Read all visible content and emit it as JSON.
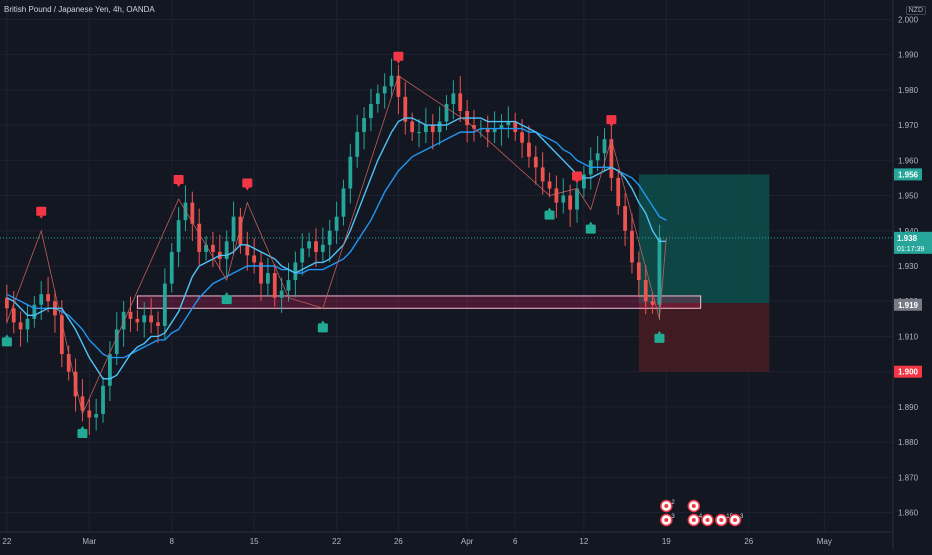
{
  "header": {
    "title": "British Pound / Japanese Yen, 4h, OANDA",
    "currency": "NZD"
  },
  "colors": {
    "bg": "#131722",
    "grid": "#1e2230",
    "up": "#26a69a",
    "down": "#ef5350",
    "ema_fast": "#4fc3f7",
    "ema_slow": "#2196f3",
    "zone_fill": "#e91e63",
    "zone_border": "#f8bbd0",
    "target_fill": "#0d4f4a",
    "stop_fill": "#4a1c22"
  },
  "chart_data": {
    "type": "candlestick",
    "ylim": [
      1.8545,
      2.0055
    ],
    "yticks": [
      "2.000",
      "1.990",
      "1.980",
      "1.970",
      "1.960",
      "1.950",
      "1.940",
      "1.930",
      "1.920",
      "1.910",
      "1.900",
      "1.890",
      "1.880",
      "1.870",
      "1.860"
    ],
    "xlim": [
      0,
      130
    ],
    "xticks": [
      {
        "label": "22",
        "x": 1
      },
      {
        "label": "Mar",
        "x": 13
      },
      {
        "label": "8",
        "x": 25
      },
      {
        "label": "15",
        "x": 37
      },
      {
        "label": "22",
        "x": 49
      },
      {
        "label": "26",
        "x": 58
      },
      {
        "label": "Apr",
        "x": 68
      },
      {
        "label": "6",
        "x": 75
      },
      {
        "label": "12",
        "x": 85
      },
      {
        "label": "19",
        "x": 97
      },
      {
        "label": "26",
        "x": 109
      },
      {
        "label": "May",
        "x": 120
      }
    ],
    "close_series": [
      1.921,
      1.918,
      1.914,
      1.912,
      1.915,
      1.919,
      1.922,
      1.92,
      1.916,
      1.905,
      1.9,
      1.893,
      1.889,
      1.887,
      1.888,
      1.896,
      1.905,
      1.912,
      1.917,
      1.915,
      1.914,
      1.916,
      1.914,
      1.913,
      1.925,
      1.934,
      1.943,
      1.948,
      1.942,
      1.934,
      1.936,
      1.934,
      1.932,
      1.937,
      1.944,
      1.936,
      1.933,
      1.931,
      1.925,
      1.928,
      1.921,
      1.923,
      1.926,
      1.931,
      1.935,
      1.937,
      1.934,
      1.936,
      1.94,
      1.944,
      1.952,
      1.961,
      1.968,
      1.972,
      1.976,
      1.979,
      1.981,
      1.984,
      1.978,
      1.971,
      1.968,
      1.968,
      1.97,
      1.968,
      1.971,
      1.976,
      1.979,
      1.974,
      1.97,
      1.969,
      1.969,
      1.968,
      1.969,
      1.97,
      1.971,
      1.968,
      1.965,
      1.961,
      1.958,
      1.954,
      1.952,
      1.948,
      1.95,
      1.946,
      1.952,
      1.956,
      1.96,
      1.962,
      1.966,
      1.955,
      1.947,
      1.94,
      1.931,
      1.926,
      1.92,
      1.919,
      1.938
    ],
    "ema_fast": [
      1.921,
      1.92,
      1.918,
      1.916,
      1.916,
      1.917,
      1.918,
      1.918,
      1.918,
      1.915,
      1.912,
      1.908,
      1.904,
      1.901,
      1.898,
      1.898,
      1.899,
      1.902,
      1.905,
      1.907,
      1.908,
      1.91,
      1.91,
      1.911,
      1.914,
      1.917,
      1.922,
      1.927,
      1.93,
      1.931,
      1.932,
      1.933,
      1.933,
      1.934,
      1.936,
      1.936,
      1.935,
      1.934,
      1.933,
      1.932,
      1.93,
      1.929,
      1.928,
      1.929,
      1.93,
      1.931,
      1.931,
      1.932,
      1.934,
      1.936,
      1.94,
      1.945,
      1.95,
      1.955,
      1.96,
      1.964,
      1.968,
      1.971,
      1.972,
      1.972,
      1.971,
      1.97,
      1.97,
      1.97,
      1.97,
      1.971,
      1.972,
      1.972,
      1.972,
      1.972,
      1.971,
      1.971,
      1.971,
      1.971,
      1.971,
      1.97,
      1.969,
      1.968,
      1.966,
      1.964,
      1.962,
      1.96,
      1.958,
      1.956,
      1.955,
      1.955,
      1.956,
      1.957,
      1.958,
      1.957,
      1.955,
      1.952,
      1.948,
      1.945,
      1.94,
      1.937,
      1.937
    ],
    "ema_slow": [
      1.922,
      1.921,
      1.92,
      1.919,
      1.918,
      1.918,
      1.918,
      1.918,
      1.917,
      1.916,
      1.914,
      1.912,
      1.909,
      1.907,
      1.905,
      1.904,
      1.904,
      1.904,
      1.905,
      1.906,
      1.907,
      1.908,
      1.909,
      1.909,
      1.911,
      1.912,
      1.915,
      1.918,
      1.921,
      1.923,
      1.925,
      1.926,
      1.927,
      1.928,
      1.929,
      1.93,
      1.93,
      1.93,
      1.93,
      1.93,
      1.929,
      1.929,
      1.928,
      1.928,
      1.929,
      1.929,
      1.929,
      1.93,
      1.931,
      1.932,
      1.934,
      1.937,
      1.94,
      1.943,
      1.947,
      1.951,
      1.954,
      1.957,
      1.959,
      1.961,
      1.962,
      1.963,
      1.964,
      1.965,
      1.966,
      1.967,
      1.968,
      1.968,
      1.968,
      1.969,
      1.969,
      1.969,
      1.969,
      1.969,
      1.969,
      1.969,
      1.968,
      1.968,
      1.967,
      1.966,
      1.965,
      1.963,
      1.962,
      1.96,
      1.959,
      1.958,
      1.958,
      1.958,
      1.958,
      1.957,
      1.956,
      1.955,
      1.953,
      1.95,
      1.947,
      1.944,
      1.943
    ],
    "zigzag": [
      [
        1,
        1.914
      ],
      [
        6,
        1.94
      ],
      [
        12,
        1.888
      ],
      [
        26,
        1.949
      ],
      [
        33,
        1.926
      ],
      [
        36,
        1.948
      ],
      [
        42,
        1.921
      ],
      [
        47,
        1.918
      ],
      [
        58,
        1.984
      ],
      [
        68,
        1.971
      ],
      [
        80,
        1.95
      ],
      [
        84,
        1.952
      ],
      [
        86,
        1.946
      ],
      [
        89,
        1.966
      ],
      [
        96,
        1.915
      ],
      [
        97,
        1.938
      ]
    ],
    "pivot_highs": [
      [
        6,
        1.942
      ],
      [
        26,
        1.951
      ],
      [
        36,
        1.95
      ],
      [
        58,
        1.986
      ],
      [
        84,
        1.952
      ],
      [
        89,
        1.968
      ]
    ],
    "pivot_lows": [
      [
        1,
        1.912
      ],
      [
        12,
        1.886
      ],
      [
        33,
        1.924
      ],
      [
        47,
        1.916
      ],
      [
        80,
        1.948
      ],
      [
        86,
        1.944
      ],
      [
        96,
        1.913
      ]
    ],
    "demand_zone": {
      "x0": 20,
      "x1": 102,
      "y_top": 1.9215,
      "y_bottom": 1.918
    },
    "position": {
      "x0": 93,
      "x1": 112,
      "entry": 1.9195,
      "target": 1.956,
      "stop": 1.9
    },
    "current_price": {
      "value": "1.938",
      "countdown": "01:17:39",
      "y": 1.938
    },
    "price_labels": [
      {
        "text": "1.956",
        "y": 1.956,
        "color": "#26a69a"
      },
      {
        "text": "1.919",
        "y": 1.919,
        "color": "#787b86"
      },
      {
        "text": "1.900",
        "y": 1.9,
        "color": "#f23645"
      }
    ],
    "event_icons": [
      {
        "x": 97,
        "row": 0,
        "text": "2"
      },
      {
        "x": 101,
        "row": 0,
        "text": ""
      },
      {
        "x": 97,
        "row": 1,
        "text": "3"
      },
      {
        "x": 101,
        "row": 1,
        "text": "4"
      },
      {
        "x": 103,
        "row": 1,
        "text": ""
      },
      {
        "x": 105,
        "row": 1,
        "text": "15"
      },
      {
        "x": 107,
        "row": 1,
        "text": "3"
      }
    ]
  }
}
